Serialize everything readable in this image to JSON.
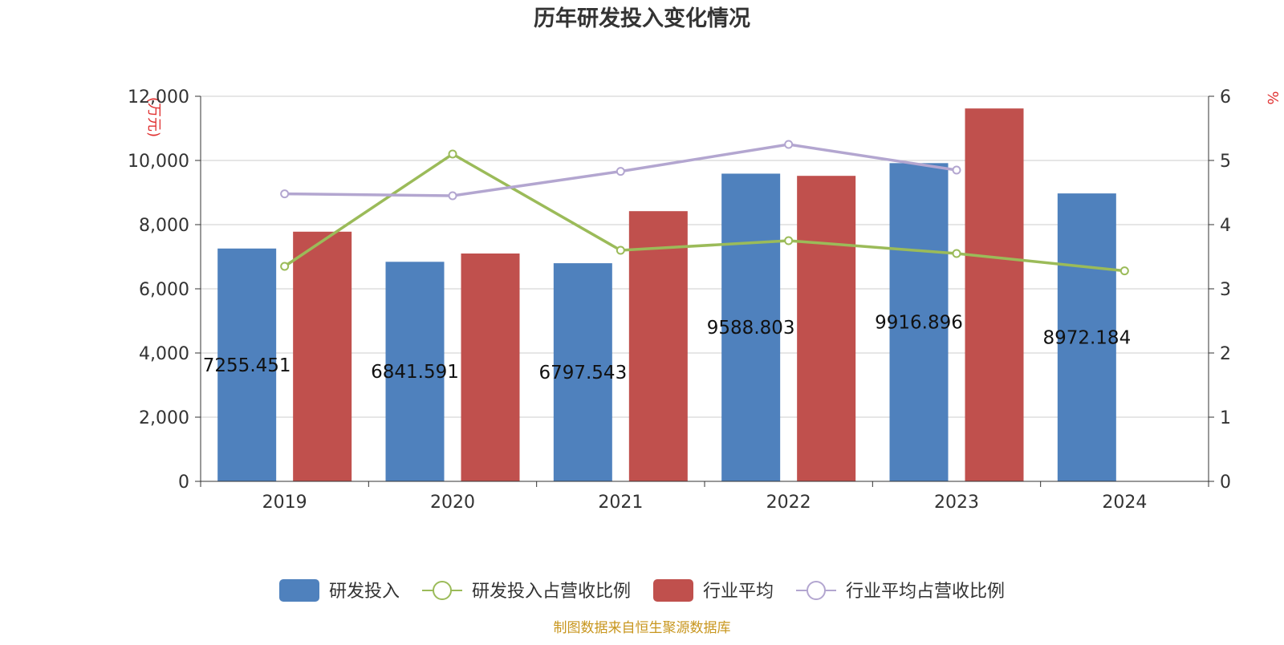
{
  "chart_data": {
    "type": "bar",
    "title": "历年研发投入变化情况",
    "categories": [
      "2019",
      "2020",
      "2021",
      "2022",
      "2023",
      "2024"
    ],
    "y_left": {
      "unit_label": "(万元)",
      "ylim": [
        0,
        12000
      ],
      "ticks": [
        "0",
        "2,000",
        "4,000",
        "6,000",
        "8,000",
        "10,000",
        "12,000"
      ]
    },
    "y_right": {
      "unit_label": "%",
      "ylim": [
        0,
        6
      ],
      "ticks": [
        "0",
        "1",
        "2",
        "3",
        "4",
        "5",
        "6"
      ]
    },
    "series": [
      {
        "name": "研发投入",
        "type": "bar",
        "axis": "left",
        "color": "#4f81bd",
        "values": [
          7255.451,
          6841.591,
          6797.543,
          9588.803,
          9916.896,
          8972.184
        ],
        "labels": [
          "7255.451",
          "6841.591",
          "6797.543",
          "9588.803",
          "9916.896",
          "8972.184"
        ]
      },
      {
        "name": "研发投入占营收比例",
        "type": "line",
        "axis": "right",
        "color": "#9bbb59",
        "values": [
          3.35,
          5.1,
          3.6,
          3.75,
          3.55,
          3.28
        ]
      },
      {
        "name": "行业平均",
        "type": "bar",
        "axis": "left",
        "color": "#c0504d",
        "values": [
          7780,
          7100,
          8420,
          9520,
          11620,
          null
        ]
      },
      {
        "name": "行业平均占营收比例",
        "type": "line",
        "axis": "right",
        "color": "#b3a6d0",
        "values": [
          4.48,
          4.45,
          4.83,
          5.25,
          4.85,
          null
        ]
      }
    ],
    "grid": true,
    "legend_position": "bottom"
  },
  "footer": {
    "source": "制图数据来自恒生聚源数据库"
  }
}
